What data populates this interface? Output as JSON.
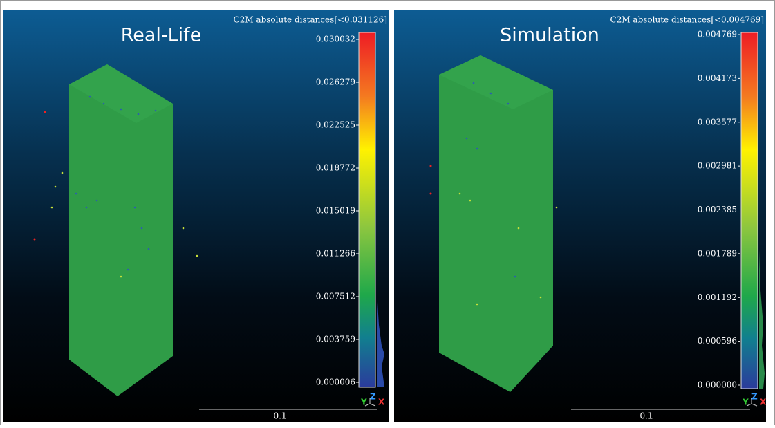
{
  "panels": [
    {
      "title": "Real-Life",
      "scalar_field": "C2M absolute distances[<0.031126]",
      "scale_ticks": [
        "0.030032",
        "0.026279",
        "0.022525",
        "0.018772",
        "0.015019",
        "0.011266",
        "0.007512",
        "0.003759",
        "0.000006"
      ],
      "scale_bar": "0.1",
      "axes": [
        "Y",
        "Z",
        "X"
      ]
    },
    {
      "title": "Simulation",
      "scalar_field": "C2M absolute distances[<0.004769]",
      "scale_ticks": [
        "0.004769",
        "0.004173",
        "0.003577",
        "0.002981",
        "0.002385",
        "0.001789",
        "0.001192",
        "0.000596",
        "0.000000"
      ],
      "scale_bar": "0.1",
      "axes": [
        "Y",
        "Z",
        "X"
      ]
    }
  ]
}
